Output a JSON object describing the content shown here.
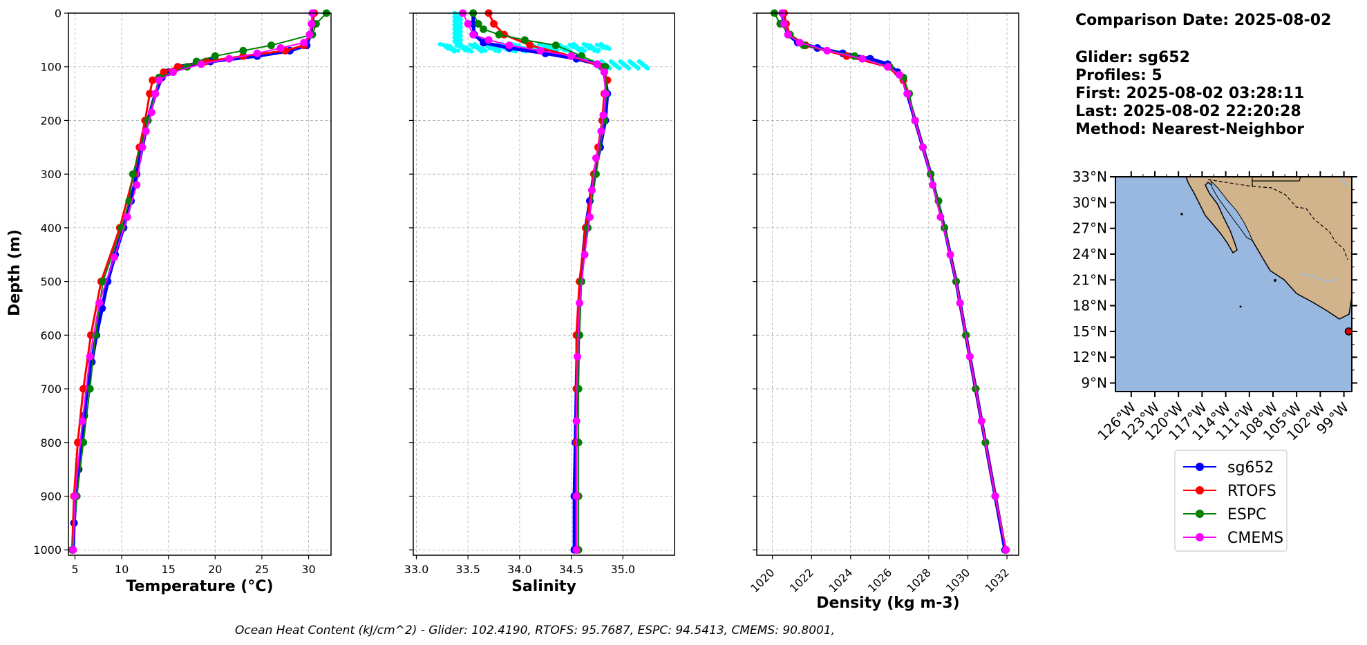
{
  "info": {
    "comparison_date": "Comparison Date: 2025-08-02",
    "glider": "Glider: sg652",
    "profiles": "Profiles: 5",
    "first": "First: 2025-08-02 03:28:11",
    "last": "Last: 2025-08-02 22:20:28",
    "method": "Method: Nearest-Neighbor"
  },
  "footer": "Ocean Heat Content (kJ/cm^2) - Glider: 102.4190,  RTOFS: 95.7687,  ESPC: 94.5413,  CMEMS: 90.8001,",
  "colors": {
    "sg652": "#0000ff",
    "RTOFS": "#ff0000",
    "ESPC": "#008000",
    "CMEMS": "#ff00ff",
    "raw": "#00ffff",
    "ocean": "#99b8e0",
    "land": "#d2b48c"
  },
  "legend": [
    "sg652",
    "RTOFS",
    "ESPC",
    "CMEMS"
  ],
  "chart_data": [
    {
      "type": "line",
      "title": "",
      "xlabel": "Temperature (°C)",
      "ylabel": "Depth (m)",
      "xlim": [
        4.3,
        32.4
      ],
      "ylim": [
        1010,
        0
      ],
      "xticks": [
        "5",
        "10",
        "15",
        "20",
        "25",
        "30"
      ],
      "yticks": [
        "0",
        "100",
        "200",
        "300",
        "400",
        "500",
        "600",
        "700",
        "800",
        "900",
        "1000"
      ],
      "series": [
        {
          "name": "sg652",
          "depth": [
            0,
            20,
            40,
            60,
            70,
            80,
            90,
            100,
            110,
            120,
            150,
            200,
            250,
            300,
            350,
            400,
            450,
            500,
            550,
            600,
            650,
            700,
            750,
            800,
            850,
            900,
            950,
            1000
          ],
          "values": [
            30.5,
            30.4,
            30.2,
            29.8,
            28.0,
            24.5,
            19.5,
            16.0,
            15.0,
            14.3,
            13.6,
            12.8,
            12.2,
            11.6,
            11.0,
            10.2,
            9.3,
            8.5,
            7.9,
            7.3,
            6.8,
            6.3,
            6.0,
            5.7,
            5.4,
            5.1,
            4.9,
            4.8
          ]
        },
        {
          "name": "RTOFS",
          "depth": [
            0,
            20,
            40,
            60,
            70,
            80,
            90,
            100,
            110,
            125,
            150,
            200,
            250,
            300,
            400,
            500,
            600,
            700,
            800,
            900,
            1000
          ],
          "values": [
            30.6,
            30.4,
            30.2,
            29.5,
            27.5,
            23.0,
            19.0,
            16.0,
            14.5,
            13.3,
            13.0,
            12.5,
            11.9,
            11.3,
            9.8,
            7.8,
            6.7,
            5.9,
            5.3,
            4.9,
            4.7
          ]
        },
        {
          "name": "ESPC",
          "depth": [
            0,
            20,
            40,
            60,
            70,
            80,
            90,
            100,
            120,
            200,
            300,
            350,
            400,
            500,
            600,
            700,
            800,
            900,
            1000
          ],
          "values": [
            31.9,
            30.8,
            30.4,
            26.0,
            23.0,
            20.0,
            18.0,
            17.0,
            14.0,
            12.8,
            11.2,
            10.8,
            10.0,
            8.0,
            7.2,
            6.6,
            5.9,
            5.2,
            4.7
          ]
        },
        {
          "name": "CMEMS",
          "depth": [
            0,
            20,
            40,
            55,
            65,
            75,
            85,
            95,
            110,
            125,
            150,
            185,
            220,
            250,
            320,
            380,
            455,
            540,
            640,
            760,
            900,
            1000
          ],
          "values": [
            30.4,
            30.3,
            30.1,
            29.5,
            27.0,
            24.5,
            21.5,
            18.5,
            15.5,
            14.0,
            13.6,
            13.2,
            12.6,
            12.2,
            11.6,
            10.6,
            9.2,
            7.6,
            6.6,
            5.8,
            5.0,
            4.8
          ]
        }
      ]
    },
    {
      "type": "line",
      "title": "",
      "xlabel": "Salinity",
      "ylabel": "",
      "xlim": [
        32.97,
        35.5
      ],
      "ylim": [
        1010,
        0
      ],
      "xticks": [
        "33.0",
        "33.5",
        "34.0",
        "34.5",
        "35.0"
      ],
      "series": [
        {
          "name": "sg652",
          "depth": [
            0,
            20,
            40,
            55,
            65,
            75,
            85,
            95,
            110,
            150,
            200,
            250,
            300,
            350,
            400,
            500,
            600,
            700,
            800,
            900,
            1000
          ],
          "values": [
            33.55,
            33.55,
            33.56,
            33.65,
            33.9,
            34.25,
            34.55,
            34.75,
            34.82,
            34.85,
            34.83,
            34.78,
            34.72,
            34.68,
            34.64,
            34.59,
            34.56,
            34.55,
            34.54,
            34.53,
            34.53
          ]
        },
        {
          "name": "RTOFS",
          "depth": [
            0,
            20,
            40,
            60,
            80,
            100,
            125,
            150,
            200,
            250,
            300,
            400,
            500,
            600,
            700,
            800,
            900,
            1000
          ],
          "values": [
            33.7,
            33.75,
            33.85,
            34.1,
            34.5,
            34.8,
            34.85,
            34.82,
            34.8,
            34.76,
            34.72,
            34.64,
            34.58,
            34.55,
            34.55,
            34.55,
            34.55,
            34.55
          ]
        },
        {
          "name": "ESPC",
          "depth": [
            0,
            20,
            30,
            40,
            50,
            60,
            80,
            100,
            150,
            200,
            300,
            400,
            500,
            600,
            700,
            800,
            900,
            1000
          ],
          "values": [
            33.55,
            33.6,
            33.65,
            33.8,
            34.05,
            34.35,
            34.6,
            34.83,
            34.84,
            34.82,
            34.74,
            34.66,
            34.6,
            34.58,
            34.57,
            34.57,
            34.57,
            34.57
          ]
        },
        {
          "name": "CMEMS",
          "depth": [
            0,
            20,
            40,
            50,
            60,
            70,
            80,
            95,
            110,
            150,
            190,
            220,
            270,
            330,
            380,
            450,
            540,
            640,
            760,
            900,
            1000
          ],
          "values": [
            33.45,
            33.5,
            33.55,
            33.7,
            33.9,
            34.2,
            34.5,
            34.75,
            34.82,
            34.83,
            34.81,
            34.79,
            34.74,
            34.7,
            34.68,
            34.63,
            34.58,
            34.56,
            34.55,
            34.55,
            34.55
          ]
        }
      ]
    },
    {
      "type": "line",
      "title": "",
      "xlabel": "Density (kg m-3)",
      "ylabel": "",
      "xlim": [
        1019.2,
        1032.6
      ],
      "ylim": [
        1010,
        0
      ],
      "xticks": [
        "1020",
        "1022",
        "1024",
        "1026",
        "1028",
        "1030",
        "1032"
      ],
      "series": [
        {
          "name": "sg652",
          "depth": [
            0,
            20,
            40,
            55,
            65,
            75,
            85,
            95,
            110,
            125,
            150,
            200,
            250,
            300,
            400,
            500,
            600,
            700,
            800,
            900,
            1000
          ],
          "values": [
            1020.5,
            1020.6,
            1020.8,
            1021.3,
            1022.3,
            1023.6,
            1025.0,
            1025.9,
            1026.4,
            1026.7,
            1026.9,
            1027.3,
            1027.7,
            1028.1,
            1028.8,
            1029.4,
            1029.9,
            1030.4,
            1030.9,
            1031.4,
            1031.9
          ]
        },
        {
          "name": "RTOFS",
          "depth": [
            0,
            20,
            40,
            60,
            80,
            100,
            125,
            150,
            200,
            300,
            400,
            500,
            600,
            700,
            800,
            900,
            1000
          ],
          "values": [
            1020.6,
            1020.7,
            1020.9,
            1021.7,
            1023.8,
            1025.9,
            1026.7,
            1026.95,
            1027.3,
            1028.1,
            1028.8,
            1029.4,
            1029.9,
            1030.4,
            1030.9,
            1031.4,
            1031.95
          ]
        },
        {
          "name": "ESPC",
          "depth": [
            0,
            20,
            40,
            60,
            80,
            100,
            120,
            150,
            200,
            250,
            300,
            350,
            400,
            500,
            600,
            700,
            800,
            900,
            1000
          ],
          "values": [
            1020.1,
            1020.4,
            1020.9,
            1021.6,
            1024.2,
            1026.0,
            1026.7,
            1027.0,
            1027.3,
            1027.7,
            1028.1,
            1028.5,
            1028.8,
            1029.4,
            1029.9,
            1030.4,
            1030.9,
            1031.4,
            1031.95
          ]
        },
        {
          "name": "CMEMS",
          "depth": [
            0,
            20,
            40,
            55,
            70,
            85,
            100,
            115,
            150,
            200,
            250,
            320,
            380,
            450,
            540,
            640,
            760,
            900,
            1000
          ],
          "values": [
            1020.5,
            1020.6,
            1020.8,
            1021.4,
            1022.8,
            1024.6,
            1025.9,
            1026.5,
            1026.9,
            1027.3,
            1027.7,
            1028.2,
            1028.6,
            1029.1,
            1029.6,
            1030.1,
            1030.7,
            1031.4,
            1031.95
          ]
        }
      ]
    },
    {
      "type": "map",
      "title": "",
      "lon_range": [
        -128,
        -98
      ],
      "lat_range": [
        8,
        33
      ],
      "xticks": [
        "126°W",
        "123°W",
        "120°W",
        "117°W",
        "114°W",
        "111°W",
        "108°W",
        "105°W",
        "102°W",
        "99°W"
      ],
      "yticks": [
        "33°N",
        "30°N",
        "27°N",
        "24°N",
        "21°N",
        "18°N",
        "15°N",
        "12°N",
        "9°N"
      ],
      "glider_position": {
        "lon": -98.4,
        "lat": 15.0
      }
    }
  ]
}
